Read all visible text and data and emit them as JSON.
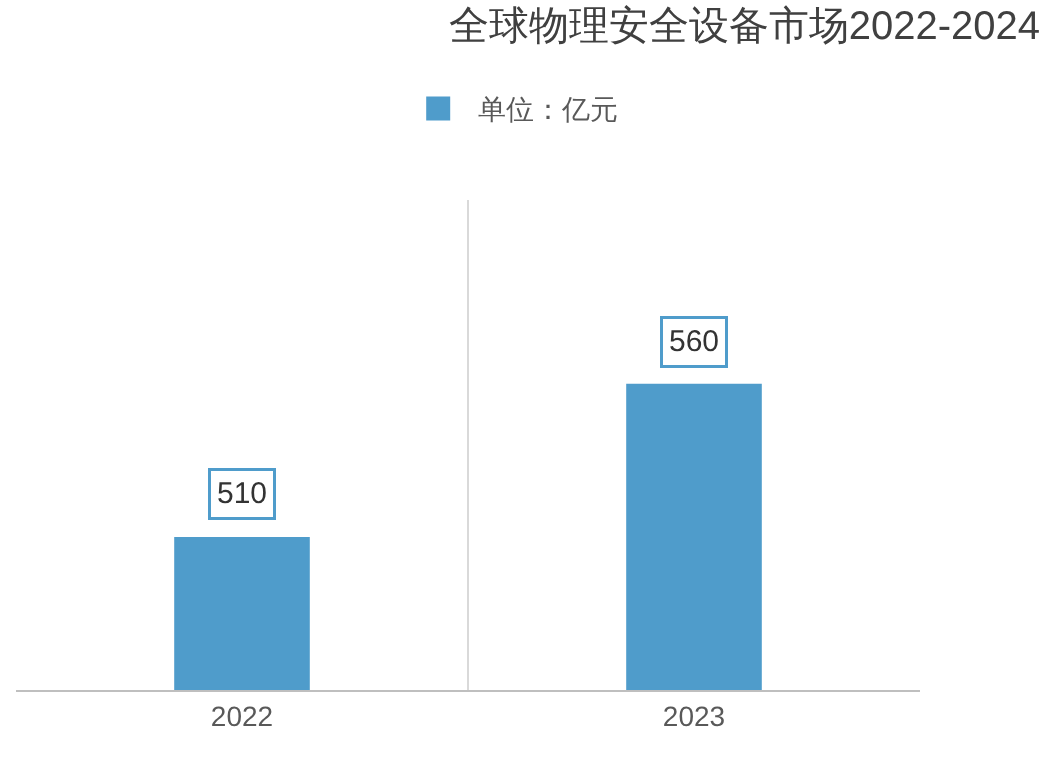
{
  "chart_data": {
    "type": "bar",
    "title": "全球物理安全设备市场2022-2024",
    "categories": [
      "2022",
      "2023"
    ],
    "series": [
      {
        "name": "单位：亿元",
        "color": "#4f9ccb",
        "values": [
          510,
          560
        ]
      }
    ],
    "ylim": [
      460,
      620
    ],
    "data_labels": true,
    "grid": "x",
    "legend": "top",
    "tick_labels": "x"
  }
}
